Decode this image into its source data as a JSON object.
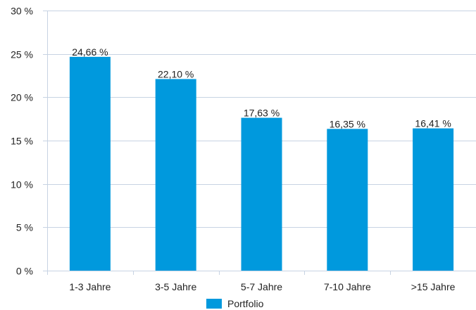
{
  "chart_data": {
    "type": "bar",
    "categories": [
      "1-3 Jahre",
      "3-5 Jahre",
      "5-7 Jahre",
      "7-10 Jahre",
      ">15 Jahre"
    ],
    "series": [
      {
        "name": "Portfolio",
        "values": [
          24.66,
          22.1,
          17.63,
          16.35,
          16.41
        ],
        "value_labels": [
          "24,66 %",
          "22,10 %",
          "17,63 %",
          "16,35 %",
          "16,41 %"
        ]
      }
    ],
    "y_ticks": [
      0,
      5,
      10,
      15,
      20,
      25,
      30
    ],
    "y_tick_labels": [
      "0 %",
      "5 %",
      "10 %",
      "15 %",
      "20 %",
      "25 %",
      "30 %"
    ],
    "ylim": [
      0,
      30
    ],
    "grid": true,
    "legend_position": "bottom-center",
    "colors": {
      "bar": "#0099dd",
      "grid": "#c7d3e3",
      "text": "#222222"
    }
  }
}
